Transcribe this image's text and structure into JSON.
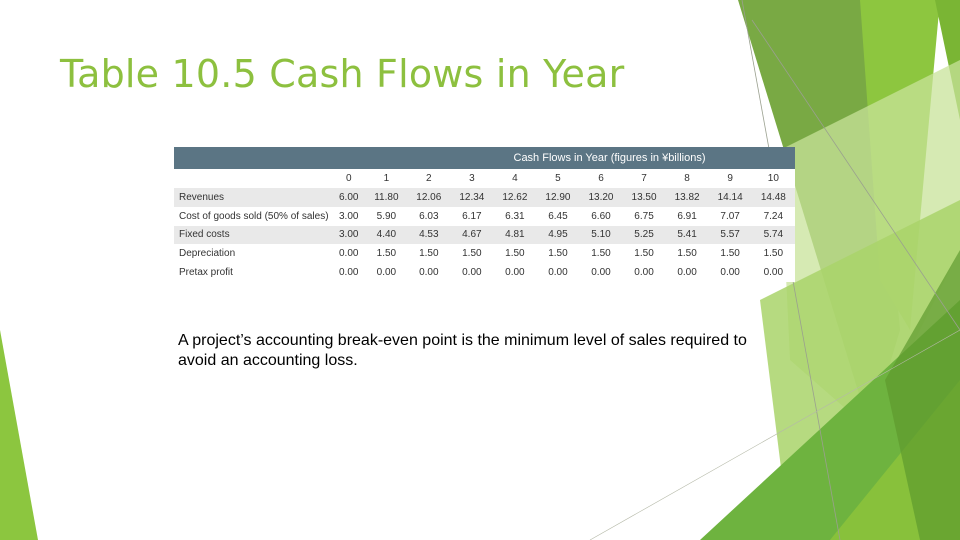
{
  "slide": {
    "title": "Table 10.5 Cash Flows in Year",
    "body_text": "A project’s accounting break-even point is the minimum level of sales required to avoid an accounting loss."
  },
  "table": {
    "caption": "Cash Flows in Year (figures in ¥billions)",
    "years": [
      "0",
      "1",
      "2",
      "3",
      "4",
      "5",
      "6",
      "7",
      "8",
      "9",
      "10"
    ],
    "rows": [
      {
        "label": "Revenues",
        "values": [
          "6.00",
          "11.80",
          "12.06",
          "12.34",
          "12.62",
          "12.90",
          "13.20",
          "13.50",
          "13.82",
          "14.14",
          "14.48"
        ]
      },
      {
        "label": "Cost of goods sold (50% of sales)",
        "values": [
          "3.00",
          "5.90",
          "6.03",
          "6.17",
          "6.31",
          "6.45",
          "6.60",
          "6.75",
          "6.91",
          "7.07",
          "7.24"
        ]
      },
      {
        "label": "Fixed costs",
        "values": [
          "3.00",
          "4.40",
          "4.53",
          "4.67",
          "4.81",
          "4.95",
          "5.10",
          "5.25",
          "5.41",
          "5.57",
          "5.74"
        ]
      },
      {
        "label": "Depreciation",
        "values": [
          "0.00",
          "1.50",
          "1.50",
          "1.50",
          "1.50",
          "1.50",
          "1.50",
          "1.50",
          "1.50",
          "1.50",
          "1.50"
        ]
      },
      {
        "label": "Pretax profit",
        "values": [
          "0.00",
          "0.00",
          "0.00",
          "0.00",
          "0.00",
          "0.00",
          "0.00",
          "0.00",
          "0.00",
          "0.00",
          "0.00"
        ]
      }
    ]
  },
  "theme": {
    "title_color": "#8dc03f",
    "header_color": "#5b7584",
    "stripe_color": "#e9e9e9"
  }
}
